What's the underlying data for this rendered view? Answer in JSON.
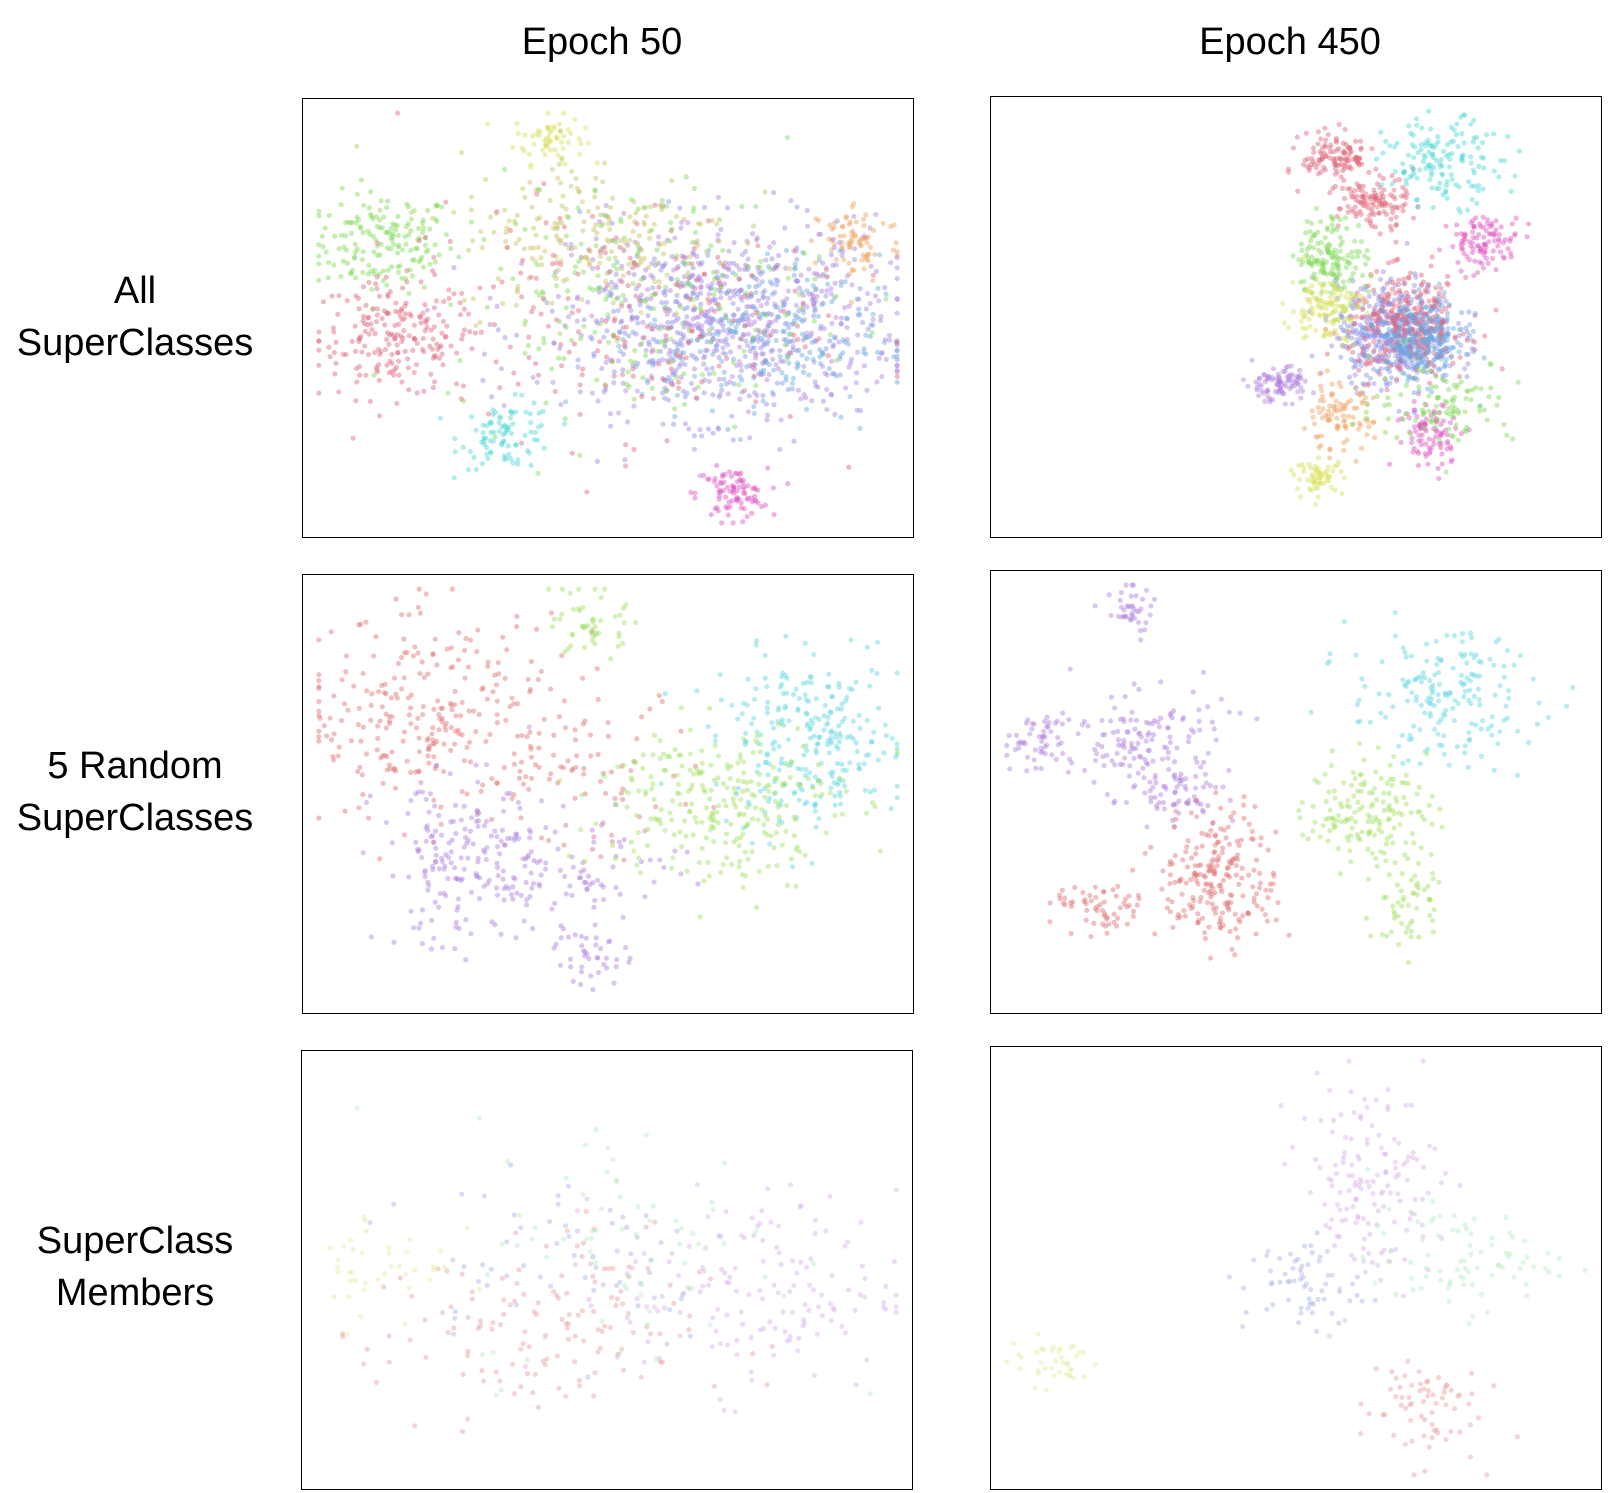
{
  "columns": [
    "Epoch 50",
    "Epoch 450"
  ],
  "rows": [
    {
      "line1": "All",
      "line2": "SuperClasses"
    },
    {
      "line1": "5 Random",
      "line2": "SuperClasses"
    },
    {
      "line1": "SuperClass",
      "line2": "Members"
    }
  ],
  "chart_data": [
    {
      "type": "scatter",
      "column": "Epoch 50",
      "row": "All SuperClasses",
      "xlim": [
        0,
        100
      ],
      "ylim": [
        0,
        100
      ],
      "grid": false,
      "legend": "none",
      "series_colors": [
        "#7ed957",
        "#d9e05a",
        "#b07fe0",
        "#8a8ee6",
        "#e0667a",
        "#f0a060",
        "#4fd6d6",
        "#e055c0",
        "#66aadd",
        "#c8c060"
      ],
      "clusters": [
        {
          "color": "#7ed957",
          "cx": 12,
          "cy": 68,
          "sx": 6,
          "sy": 6,
          "n": 160
        },
        {
          "color": "#d9e05a",
          "cx": 40,
          "cy": 93,
          "sx": 3,
          "sy": 3,
          "n": 60
        },
        {
          "color": "#e0667a",
          "cx": 14,
          "cy": 45,
          "sx": 7,
          "sy": 7,
          "n": 200
        },
        {
          "color": "#4fd6d6",
          "cx": 33,
          "cy": 22,
          "sx": 4,
          "sy": 4,
          "n": 90
        },
        {
          "color": "#e055c0",
          "cx": 71,
          "cy": 8,
          "sx": 3,
          "sy": 3,
          "n": 90
        },
        {
          "color": "#f0a060",
          "cx": 92,
          "cy": 68,
          "sx": 4,
          "sy": 5,
          "n": 80
        },
        {
          "color": "#b07fe0",
          "cx": 72,
          "cy": 50,
          "sx": 14,
          "sy": 12,
          "n": 450
        },
        {
          "color": "#8a8ee6",
          "cx": 66,
          "cy": 48,
          "sx": 14,
          "sy": 11,
          "n": 350
        },
        {
          "color": "#66aadd",
          "cx": 76,
          "cy": 45,
          "sx": 10,
          "sy": 10,
          "n": 200
        },
        {
          "color": "#c8c060",
          "cx": 48,
          "cy": 70,
          "sx": 12,
          "sy": 10,
          "n": 200
        },
        {
          "color": "#7ed957",
          "cx": 55,
          "cy": 55,
          "sx": 16,
          "sy": 14,
          "n": 200
        },
        {
          "color": "#e0667a",
          "cx": 50,
          "cy": 50,
          "sx": 18,
          "sy": 14,
          "n": 200
        }
      ]
    },
    {
      "type": "scatter",
      "column": "Epoch 450",
      "row": "All SuperClasses",
      "xlim": [
        0,
        100
      ],
      "ylim": [
        0,
        100
      ],
      "grid": false,
      "legend": "none",
      "series_colors": [
        "#e0667a",
        "#4fd6d6",
        "#e055c0",
        "#7ed957",
        "#d9e05a",
        "#8a8ee6",
        "#f0a060",
        "#66aadd",
        "#b07fe0"
      ],
      "clusters": [
        {
          "color": "#8a8ee6",
          "cx": 67,
          "cy": 46,
          "sx": 5,
          "sy": 6,
          "n": 500
        },
        {
          "color": "#e0667a",
          "cx": 69,
          "cy": 48,
          "sx": 5,
          "sy": 6,
          "n": 300
        },
        {
          "color": "#66aadd",
          "cx": 71,
          "cy": 44,
          "sx": 4,
          "sy": 5,
          "n": 200
        },
        {
          "color": "#e0667a",
          "cx": 57,
          "cy": 88,
          "sx": 3,
          "sy": 3,
          "n": 120
        },
        {
          "color": "#e0667a",
          "cx": 63,
          "cy": 77,
          "sx": 3,
          "sy": 3,
          "n": 120
        },
        {
          "color": "#4fd6d6",
          "cx": 75,
          "cy": 87,
          "sx": 5,
          "sy": 5,
          "n": 150
        },
        {
          "color": "#e055c0",
          "cx": 82,
          "cy": 68,
          "sx": 3,
          "sy": 3,
          "n": 100
        },
        {
          "color": "#7ed957",
          "cx": 56,
          "cy": 64,
          "sx": 3,
          "sy": 5,
          "n": 150
        },
        {
          "color": "#d9e05a",
          "cx": 55,
          "cy": 52,
          "sx": 3,
          "sy": 4,
          "n": 120
        },
        {
          "color": "#b07fe0",
          "cx": 47,
          "cy": 34,
          "sx": 3,
          "sy": 2,
          "n": 90
        },
        {
          "color": "#f0a060",
          "cx": 57,
          "cy": 26,
          "sx": 3,
          "sy": 4,
          "n": 90
        },
        {
          "color": "#d9e05a",
          "cx": 54,
          "cy": 12,
          "sx": 2,
          "sy": 2,
          "n": 60
        },
        {
          "color": "#e055c0",
          "cx": 73,
          "cy": 22,
          "sx": 3,
          "sy": 4,
          "n": 90
        },
        {
          "color": "#7ed957",
          "cx": 75,
          "cy": 30,
          "sx": 6,
          "sy": 5,
          "n": 100
        }
      ]
    },
    {
      "type": "scatter",
      "column": "Epoch 50",
      "row": "5 Random SuperClasses",
      "xlim": [
        0,
        100
      ],
      "ylim": [
        0,
        100
      ],
      "grid": false,
      "legend": "none",
      "series_colors": [
        "#e07070",
        "#9ee07a",
        "#b07fe0",
        "#5fd6e0",
        "#a0e060"
      ],
      "clusters": [
        {
          "color": "#e07070",
          "cx": 20,
          "cy": 68,
          "sx": 11,
          "sy": 12,
          "n": 260
        },
        {
          "color": "#e07070",
          "cx": 45,
          "cy": 55,
          "sx": 10,
          "sy": 10,
          "n": 80
        },
        {
          "color": "#b07fe0",
          "cx": 27,
          "cy": 33,
          "sx": 8,
          "sy": 10,
          "n": 200
        },
        {
          "color": "#b07fe0",
          "cx": 47,
          "cy": 12,
          "sx": 3,
          "sy": 4,
          "n": 40
        },
        {
          "color": "#b07fe0",
          "cx": 48,
          "cy": 32,
          "sx": 8,
          "sy": 6,
          "n": 60
        },
        {
          "color": "#5fd6e0",
          "cx": 84,
          "cy": 62,
          "sx": 8,
          "sy": 10,
          "n": 260
        },
        {
          "color": "#a0e060",
          "cx": 69,
          "cy": 48,
          "sx": 10,
          "sy": 10,
          "n": 260
        },
        {
          "color": "#a0e060",
          "cx": 47,
          "cy": 90,
          "sx": 3,
          "sy": 4,
          "n": 50
        }
      ]
    },
    {
      "type": "scatter",
      "column": "Epoch 450",
      "row": "5 Random SuperClasses",
      "xlim": [
        0,
        100
      ],
      "ylim": [
        0,
        100
      ],
      "grid": false,
      "legend": "none",
      "series_colors": [
        "#b07fe0",
        "#5fd6e0",
        "#a0e060",
        "#e07070"
      ],
      "clusters": [
        {
          "color": "#b07fe0",
          "cx": 24,
          "cy": 62,
          "sx": 7,
          "sy": 6,
          "n": 140
        },
        {
          "color": "#b07fe0",
          "cx": 22,
          "cy": 93,
          "sx": 2,
          "sy": 3,
          "n": 40
        },
        {
          "color": "#b07fe0",
          "cx": 6,
          "cy": 62,
          "sx": 3,
          "sy": 4,
          "n": 50
        },
        {
          "color": "#b07fe0",
          "cx": 30,
          "cy": 50,
          "sx": 4,
          "sy": 3,
          "n": 60
        },
        {
          "color": "#5fd6e0",
          "cx": 75,
          "cy": 72,
          "sx": 8,
          "sy": 8,
          "n": 180
        },
        {
          "color": "#a0e060",
          "cx": 62,
          "cy": 46,
          "sx": 5,
          "sy": 6,
          "n": 150
        },
        {
          "color": "#a0e060",
          "cx": 69,
          "cy": 25,
          "sx": 3,
          "sy": 7,
          "n": 60
        },
        {
          "color": "#e07070",
          "cx": 37,
          "cy": 30,
          "sx": 5,
          "sy": 8,
          "n": 220
        },
        {
          "color": "#e07070",
          "cx": 17,
          "cy": 22,
          "sx": 4,
          "sy": 3,
          "n": 60
        }
      ]
    },
    {
      "type": "scatter",
      "column": "Epoch 50",
      "row": "SuperClass Members",
      "xlim": [
        0,
        100
      ],
      "ylim": [
        0,
        100
      ],
      "grid": false,
      "legend": "none",
      "series_colors": [
        "#e8a0a0",
        "#dcb0ec",
        "#a8b4ec",
        "#b8ecc4",
        "#e4eca0"
      ],
      "clusters": [
        {
          "color": "#e8a0a0",
          "cx": 38,
          "cy": 35,
          "sx": 14,
          "sy": 12,
          "n": 140
        },
        {
          "color": "#dcb0ec",
          "cx": 76,
          "cy": 45,
          "sx": 12,
          "sy": 12,
          "n": 150
        },
        {
          "color": "#a8b4ec",
          "cx": 42,
          "cy": 55,
          "sx": 16,
          "sy": 12,
          "n": 60
        },
        {
          "color": "#b8ecc4",
          "cx": 55,
          "cy": 55,
          "sx": 14,
          "sy": 16,
          "n": 70
        },
        {
          "color": "#e4eca0",
          "cx": 12,
          "cy": 52,
          "sx": 6,
          "sy": 8,
          "n": 40
        }
      ]
    },
    {
      "type": "scatter",
      "column": "Epoch 450",
      "row": "SuperClass Members",
      "xlim": [
        0,
        100
      ],
      "ylim": [
        0,
        100
      ],
      "grid": false,
      "legend": "none",
      "series_colors": [
        "#dcb0ec",
        "#a8b4ec",
        "#b8ecc4",
        "#e8a0a0",
        "#e4eca0"
      ],
      "clusters": [
        {
          "color": "#dcb0ec",
          "cx": 62,
          "cy": 70,
          "sx": 6,
          "sy": 12,
          "n": 150
        },
        {
          "color": "#a8b4ec",
          "cx": 51,
          "cy": 46,
          "sx": 5,
          "sy": 6,
          "n": 60
        },
        {
          "color": "#b8ecc4",
          "cx": 78,
          "cy": 52,
          "sx": 8,
          "sy": 6,
          "n": 80
        },
        {
          "color": "#e8a0a0",
          "cx": 71,
          "cy": 17,
          "sx": 5,
          "sy": 7,
          "n": 70
        },
        {
          "color": "#e4eca0",
          "cx": 9,
          "cy": 28,
          "sx": 4,
          "sy": 3,
          "n": 40
        }
      ]
    }
  ]
}
